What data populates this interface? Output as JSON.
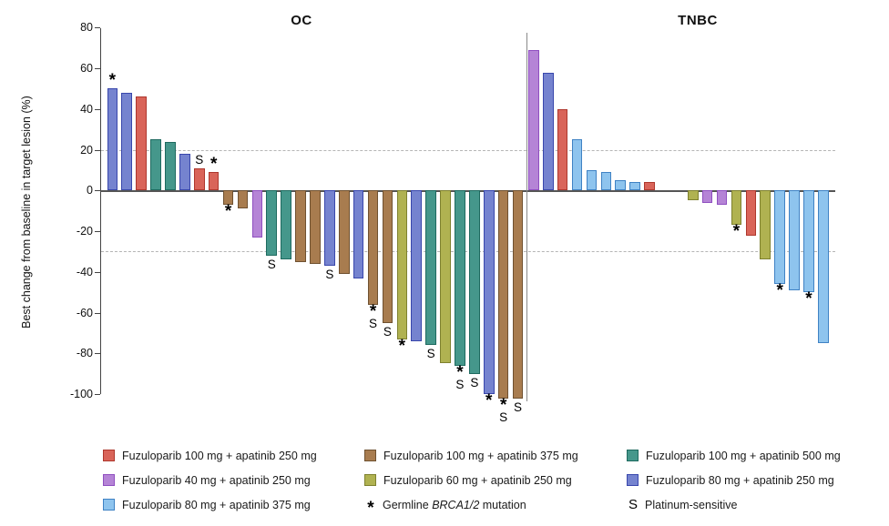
{
  "chart_data": {
    "type": "bar",
    "subtype": "waterfall",
    "ylabel": "Best change from baseline in target lesion (%)",
    "ylim": [
      -100,
      80
    ],
    "yticks": [
      80,
      60,
      40,
      20,
      0,
      -20,
      -40,
      -60,
      -80,
      -100
    ],
    "reference_lines": [
      20,
      -30
    ],
    "legend_position": "bottom",
    "groups": {
      "red": {
        "label": "Fuzuloparib 100 mg + apatinib 250 mg",
        "fill": "#D96459",
        "border": "#AE372D"
      },
      "brown": {
        "label": "Fuzuloparib 100 mg + apatinib 375 mg",
        "fill": "#A87C4F",
        "border": "#6F5130"
      },
      "teal": {
        "label": "Fuzuloparib 100 mg + apatinib 500 mg",
        "fill": "#45978B",
        "border": "#1E6A5F"
      },
      "purple": {
        "label": "Fuzuloparib 40 mg + apatinib 250 mg",
        "fill": "#B584D6",
        "border": "#8F4FC0"
      },
      "olive": {
        "label": "Fuzuloparib 60 mg + apatinib 250 mg",
        "fill": "#B0B251",
        "border": "#7E812F"
      },
      "blue": {
        "label": "Fuzuloparib 80 mg + apatinib 250 mg",
        "fill": "#7583CF",
        "border": "#3947AC"
      },
      "lightblue": {
        "label": "Fuzuloparib 80 mg + apatinib 375 mg",
        "fill": "#8EC4EE",
        "border": "#3F82C4"
      }
    },
    "marker_meanings": {
      "*": "Germline BRCA1/2 mutation",
      "S": "Platinum-sensitive"
    },
    "panels": [
      {
        "title": "OC",
        "bars": [
          {
            "group": "blue",
            "value": 50,
            "marks": [
              "*"
            ]
          },
          {
            "group": "blue",
            "value": 48
          },
          {
            "group": "red",
            "value": 46
          },
          {
            "group": "teal",
            "value": 25
          },
          {
            "group": "teal",
            "value": 24
          },
          {
            "group": "blue",
            "value": 18
          },
          {
            "group": "red",
            "value": 11,
            "marks": [
              "S"
            ]
          },
          {
            "group": "red",
            "value": 9,
            "marks": [
              "*"
            ]
          },
          {
            "group": "brown",
            "value": -7,
            "marks": [
              "*"
            ]
          },
          {
            "group": "brown",
            "value": -9
          },
          {
            "group": "purple",
            "value": -23
          },
          {
            "group": "teal",
            "value": -32,
            "marks": [
              "S"
            ]
          },
          {
            "group": "teal",
            "value": -34
          },
          {
            "group": "brown",
            "value": -35
          },
          {
            "group": "brown",
            "value": -36
          },
          {
            "group": "blue",
            "value": -37,
            "marks": [
              "S"
            ]
          },
          {
            "group": "brown",
            "value": -41
          },
          {
            "group": "blue",
            "value": -43
          },
          {
            "group": "brown",
            "value": -56,
            "marks": [
              "*",
              "S"
            ]
          },
          {
            "group": "brown",
            "value": -65,
            "marks": [
              "S"
            ]
          },
          {
            "group": "olive",
            "value": -73,
            "marks": [
              "*"
            ]
          },
          {
            "group": "blue",
            "value": -74
          },
          {
            "group": "teal",
            "value": -76,
            "marks": [
              "S"
            ]
          },
          {
            "group": "olive",
            "value": -85
          },
          {
            "group": "teal",
            "value": -86,
            "marks": [
              "*",
              "S"
            ]
          },
          {
            "group": "teal",
            "value": -90,
            "marks": [
              "S"
            ]
          },
          {
            "group": "blue",
            "value": -100,
            "marks": [
              "*"
            ]
          },
          {
            "group": "brown",
            "value": -102,
            "marks": [
              "*",
              "S"
            ]
          },
          {
            "group": "brown",
            "value": -102,
            "marks": [
              "S"
            ]
          }
        ]
      },
      {
        "title": "TNBC",
        "gap_after_index": 8,
        "gap_slots": 2,
        "bars": [
          {
            "group": "purple",
            "value": 69
          },
          {
            "group": "blue",
            "value": 58
          },
          {
            "group": "red",
            "value": 40
          },
          {
            "group": "lightblue",
            "value": 25
          },
          {
            "group": "lightblue",
            "value": 10
          },
          {
            "group": "lightblue",
            "value": 9
          },
          {
            "group": "lightblue",
            "value": 5
          },
          {
            "group": "lightblue",
            "value": 4
          },
          {
            "group": "red",
            "value": 4
          },
          {
            "group": "olive",
            "value": -5
          },
          {
            "group": "purple",
            "value": -6
          },
          {
            "group": "purple",
            "value": -7
          },
          {
            "group": "olive",
            "value": -17,
            "marks": [
              "*"
            ]
          },
          {
            "group": "red",
            "value": -22
          },
          {
            "group": "olive",
            "value": -34
          },
          {
            "group": "lightblue",
            "value": -46,
            "marks": [
              "*"
            ]
          },
          {
            "group": "lightblue",
            "value": -49
          },
          {
            "group": "lightblue",
            "value": -50,
            "marks": [
              "*"
            ]
          },
          {
            "group": "lightblue",
            "value": -75
          }
        ]
      }
    ]
  },
  "legend": {
    "columns": [
      [
        {
          "swatch": "red",
          "parts": [
            {
              "text": "Fuzuloparib 100 mg + apatinib 250 mg"
            }
          ]
        },
        {
          "swatch": "purple",
          "parts": [
            {
              "text": "Fuzuloparib 40 mg + apatinib 250 mg"
            }
          ]
        },
        {
          "swatch": "lightblue",
          "parts": [
            {
              "text": "Fuzuloparib 80 mg + apatinib 375 mg"
            }
          ]
        }
      ],
      [
        {
          "swatch": "brown",
          "parts": [
            {
              "text": "Fuzuloparib 100 mg + apatinib 375 mg"
            }
          ]
        },
        {
          "swatch": "olive",
          "parts": [
            {
              "text": "Fuzuloparib 60 mg + apatinib 250 mg"
            }
          ]
        },
        {
          "symbol": "*",
          "parts": [
            {
              "text": "Germline "
            },
            {
              "text": "BRCA1/2",
              "italic": true
            },
            {
              "text": " mutation"
            }
          ]
        }
      ],
      [
        {
          "swatch": "teal",
          "parts": [
            {
              "text": "Fuzuloparib 100 mg + apatinib 500 mg"
            }
          ]
        },
        {
          "swatch": "blue",
          "parts": [
            {
              "text": "Fuzuloparib 80 mg + apatinib 250 mg"
            }
          ]
        },
        {
          "symbol": "S",
          "parts": [
            {
              "text": "Platinum-sensitive"
            }
          ]
        }
      ]
    ]
  }
}
